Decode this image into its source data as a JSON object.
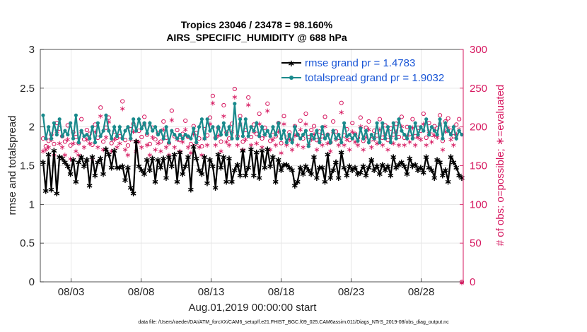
{
  "chart_data": {
    "type": "line",
    "title": "Tropics 23046 / 23478 = 98.160%",
    "subtitle": "AIRS_SPECIFIC_HUMIDITY @ 688 hPa",
    "xlabel": "Aug.01,2019 00:00:00 start",
    "ylabel": "rmse and totalspread",
    "y2label": "# of obs: o=possible; ∗=evaluated",
    "footnote": "data file: /Users/raeder/DAI/ATM_forcXX/CAM6_setup/f.e21.FHIST_BGC.f09_025.CAM6assim.011/Diags_NTrS_2019-08/obs_diag_output.nc",
    "xlim": [
      0.8,
      31.0
    ],
    "ylim": [
      0,
      3
    ],
    "y2lim": [
      0,
      300
    ],
    "x_tick_positions": [
      3,
      8,
      13,
      18,
      23,
      28
    ],
    "x_tick_labels": [
      "08/03",
      "08/08",
      "08/13",
      "08/18",
      "08/23",
      "08/28"
    ],
    "y_ticks": [
      "0",
      "0.5",
      "1",
      "1.5",
      "2",
      "2.5",
      "3"
    ],
    "y2_ticks": [
      "0",
      "50",
      "100",
      "150",
      "200",
      "250",
      "300"
    ],
    "grid": true,
    "legend_position": "top-right",
    "colors": {
      "rmse": "#000000",
      "spread": "#1a8a8c",
      "obs": "#d6175f",
      "legend_text": "#1a56d6"
    },
    "series": [
      {
        "name": "rmse grand pr = 1.4783",
        "axis": "left",
        "values": [
          1.55,
          1.18,
          1.65,
          1.2,
          1.7,
          1.15,
          1.62,
          1.6,
          1.55,
          1.5,
          1.4,
          1.58,
          1.3,
          1.55,
          1.62,
          1.5,
          1.58,
          1.25,
          1.62,
          1.38,
          1.55,
          1.6,
          1.4,
          1.72,
          1.65,
          1.48,
          1.7,
          1.48,
          1.48,
          1.5,
          1.32,
          1.48,
          1.22,
          1.15,
          1.82,
          1.5,
          1.45,
          1.4,
          1.58,
          1.45,
          1.6,
          1.3,
          1.58,
          1.48,
          1.6,
          1.35,
          1.62,
          1.5,
          1.65,
          1.3,
          1.68,
          1.4,
          1.5,
          1.62,
          1.2,
          1.75,
          1.6,
          1.45,
          1.4,
          1.62,
          1.28,
          1.58,
          1.5,
          1.22,
          1.65,
          1.48,
          1.62,
          1.3,
          1.6,
          1.3,
          1.45,
          1.52,
          1.38,
          1.7,
          1.38,
          1.48,
          1.72,
          1.38,
          1.68,
          1.35,
          1.7,
          1.48,
          1.72,
          1.5,
          1.62,
          1.3,
          1.58,
          1.45,
          1.52,
          1.52,
          1.48,
          1.45,
          1.25,
          1.3,
          1.48,
          1.4,
          1.5,
          1.45,
          1.4,
          1.62,
          1.35,
          1.48,
          1.48,
          1.3,
          1.65,
          1.35,
          1.45,
          1.55,
          1.35,
          1.68,
          1.48,
          1.38,
          1.5,
          1.45,
          1.48,
          1.4,
          1.42,
          1.5,
          1.38,
          1.48,
          1.58,
          1.45,
          1.5,
          1.4,
          1.52,
          1.45,
          1.5,
          1.38,
          1.62,
          1.48,
          1.52,
          1.55,
          1.5,
          1.4,
          1.6,
          1.5,
          1.52,
          1.45,
          1.48,
          1.42,
          1.62,
          1.48,
          1.45,
          1.35,
          1.58,
          1.55,
          1.38,
          1.45,
          1.3,
          1.62,
          1.55,
          1.48,
          1.38,
          1.35
        ]
      },
      {
        "name": "totalspread grand pr = 1.9032",
        "axis": "left",
        "values": [
          2.15,
          1.85,
          2.0,
          1.85,
          2.05,
          1.9,
          2.1,
          1.88,
          1.95,
          1.9,
          2.05,
          1.85,
          2.15,
          1.8,
          1.95,
          1.88,
          1.9,
          1.85,
          2.0,
          1.8,
          2.05,
          1.88,
          1.95,
          2.15,
          1.95,
          1.85,
          2.0,
          1.88,
          2.0,
          1.85,
          1.95,
          2.0,
          1.85,
          2.1,
          1.95,
          2.1,
          1.98,
          2.05,
          1.92,
          2.05,
          1.95,
          2.0,
          1.9,
          1.95,
          1.85,
          2.0,
          1.8,
          1.95,
          1.9,
          1.85,
          1.9,
          1.85,
          1.9,
          1.88,
          1.85,
          1.98,
          1.8,
          2.0,
          2.1,
          1.85,
          2.1,
          1.95,
          2.0,
          1.85,
          2.0,
          1.9,
          2.05,
          1.9,
          2.0,
          1.85,
          2.3,
          1.85,
          2.1,
          1.88,
          2.1,
          1.88,
          2.0,
          1.95,
          2.05,
          1.88,
          2.0,
          1.9,
          1.95,
          1.88,
          2.0,
          1.9,
          2.05,
          1.85,
          1.95,
          1.8,
          1.9,
          1.8,
          2.0,
          1.9,
          1.85,
          1.9,
          1.95,
          1.75,
          1.9,
          1.85,
          1.95,
          1.8,
          2.0,
          1.85,
          1.9,
          1.8,
          1.95,
          1.85,
          1.9,
          1.8,
          2.05,
          1.88,
          1.9,
          1.85,
          1.9,
          1.82,
          1.98,
          1.85,
          1.95,
          1.8,
          1.9,
          1.85,
          2.05,
          1.8,
          2.05,
          1.85,
          2.0,
          1.8,
          2.05,
          1.85,
          2.1,
          1.95,
          1.9,
          1.85,
          2.0,
          1.85,
          2.05,
          1.9,
          2.0,
          1.95,
          2.1,
          1.9,
          2.0,
          1.95,
          1.9,
          2.1,
          1.85,
          2.05,
          1.95,
          1.9,
          2.0,
          1.85,
          1.95,
          1.9
        ]
      },
      {
        "name": "possible",
        "axis": "right",
        "marker": "o",
        "values": [
          185,
          175,
          182,
          190,
          178,
          205,
          198,
          188,
          181,
          202,
          176,
          193,
          187,
          179,
          210,
          184,
          196,
          191,
          177,
          203,
          186,
          225,
          181,
          199,
          212,
          179,
          194,
          186,
          188,
          233,
          183,
          176,
          197,
          204,
          181,
          195,
          187,
          213,
          190,
          178,
          199,
          184,
          192,
          181,
          207,
          186,
          179,
          221,
          188,
          196,
          183,
          191,
          208,
          187,
          178,
          201,
          192,
          185,
          175,
          197,
          189,
          212,
          240,
          186,
          199,
          181,
          228,
          193,
          185,
          204,
          249,
          188,
          214,
          181,
          196,
          238,
          187,
          203,
          191,
          217,
          185,
          199,
          230,
          182,
          194,
          188,
          205,
          179,
          214,
          186,
          193,
          183,
          201,
          190,
          208,
          185,
          217,
          187,
          196,
          201,
          183,
          194,
          188,
          213,
          190,
          180,
          207,
          194,
          186,
          231,
          189,
          197,
          183,
          205,
          191,
          186,
          212,
          182,
          199,
          207,
          184,
          195,
          189,
          210,
          186,
          202,
          183,
          198,
          190,
          204,
          187,
          213,
          186,
          200,
          191,
          210,
          188,
          199,
          195,
          217,
          186,
          205,
          190,
          201,
          198,
          215,
          182,
          207,
          211,
          195,
          188,
          203,
          210,
          0
        ]
      },
      {
        "name": "evaluated",
        "axis": "right",
        "marker": "*",
        "values": [
          170,
          172,
          175,
          185,
          165,
          195,
          180,
          175,
          165,
          185,
          160,
          180,
          170,
          165,
          195,
          175,
          185,
          180,
          160,
          195,
          175,
          215,
          172,
          188,
          208,
          170,
          185,
          175,
          180,
          225,
          172,
          165,
          185,
          195,
          170,
          182,
          175,
          205,
          178,
          165,
          188,
          172,
          180,
          170,
          198,
          175,
          165,
          210,
          175,
          185,
          170,
          182,
          198,
          175,
          168,
          192,
          180,
          175,
          165,
          186,
          178,
          205,
          232,
          178,
          190,
          170,
          215,
          182,
          178,
          195,
          240,
          178,
          205,
          172,
          185,
          230,
          178,
          195,
          180,
          205,
          175,
          190,
          222,
          172,
          185,
          178,
          195,
          168,
          205,
          178,
          185,
          172,
          190,
          178,
          198,
          175,
          205,
          178,
          185,
          192,
          172,
          185,
          178,
          202,
          180,
          170,
          195,
          185,
          178,
          220,
          178,
          185,
          172,
          195,
          182,
          178,
          202,
          172,
          188,
          198,
          175,
          185,
          180,
          198,
          178,
          192,
          172,
          188,
          180,
          195,
          178,
          202,
          178,
          190,
          182,
          200,
          178,
          188,
          185,
          205,
          178,
          195,
          182,
          190,
          188,
          205,
          172,
          195,
          200,
          185,
          178,
          192,
          198,
          0
        ]
      }
    ]
  }
}
